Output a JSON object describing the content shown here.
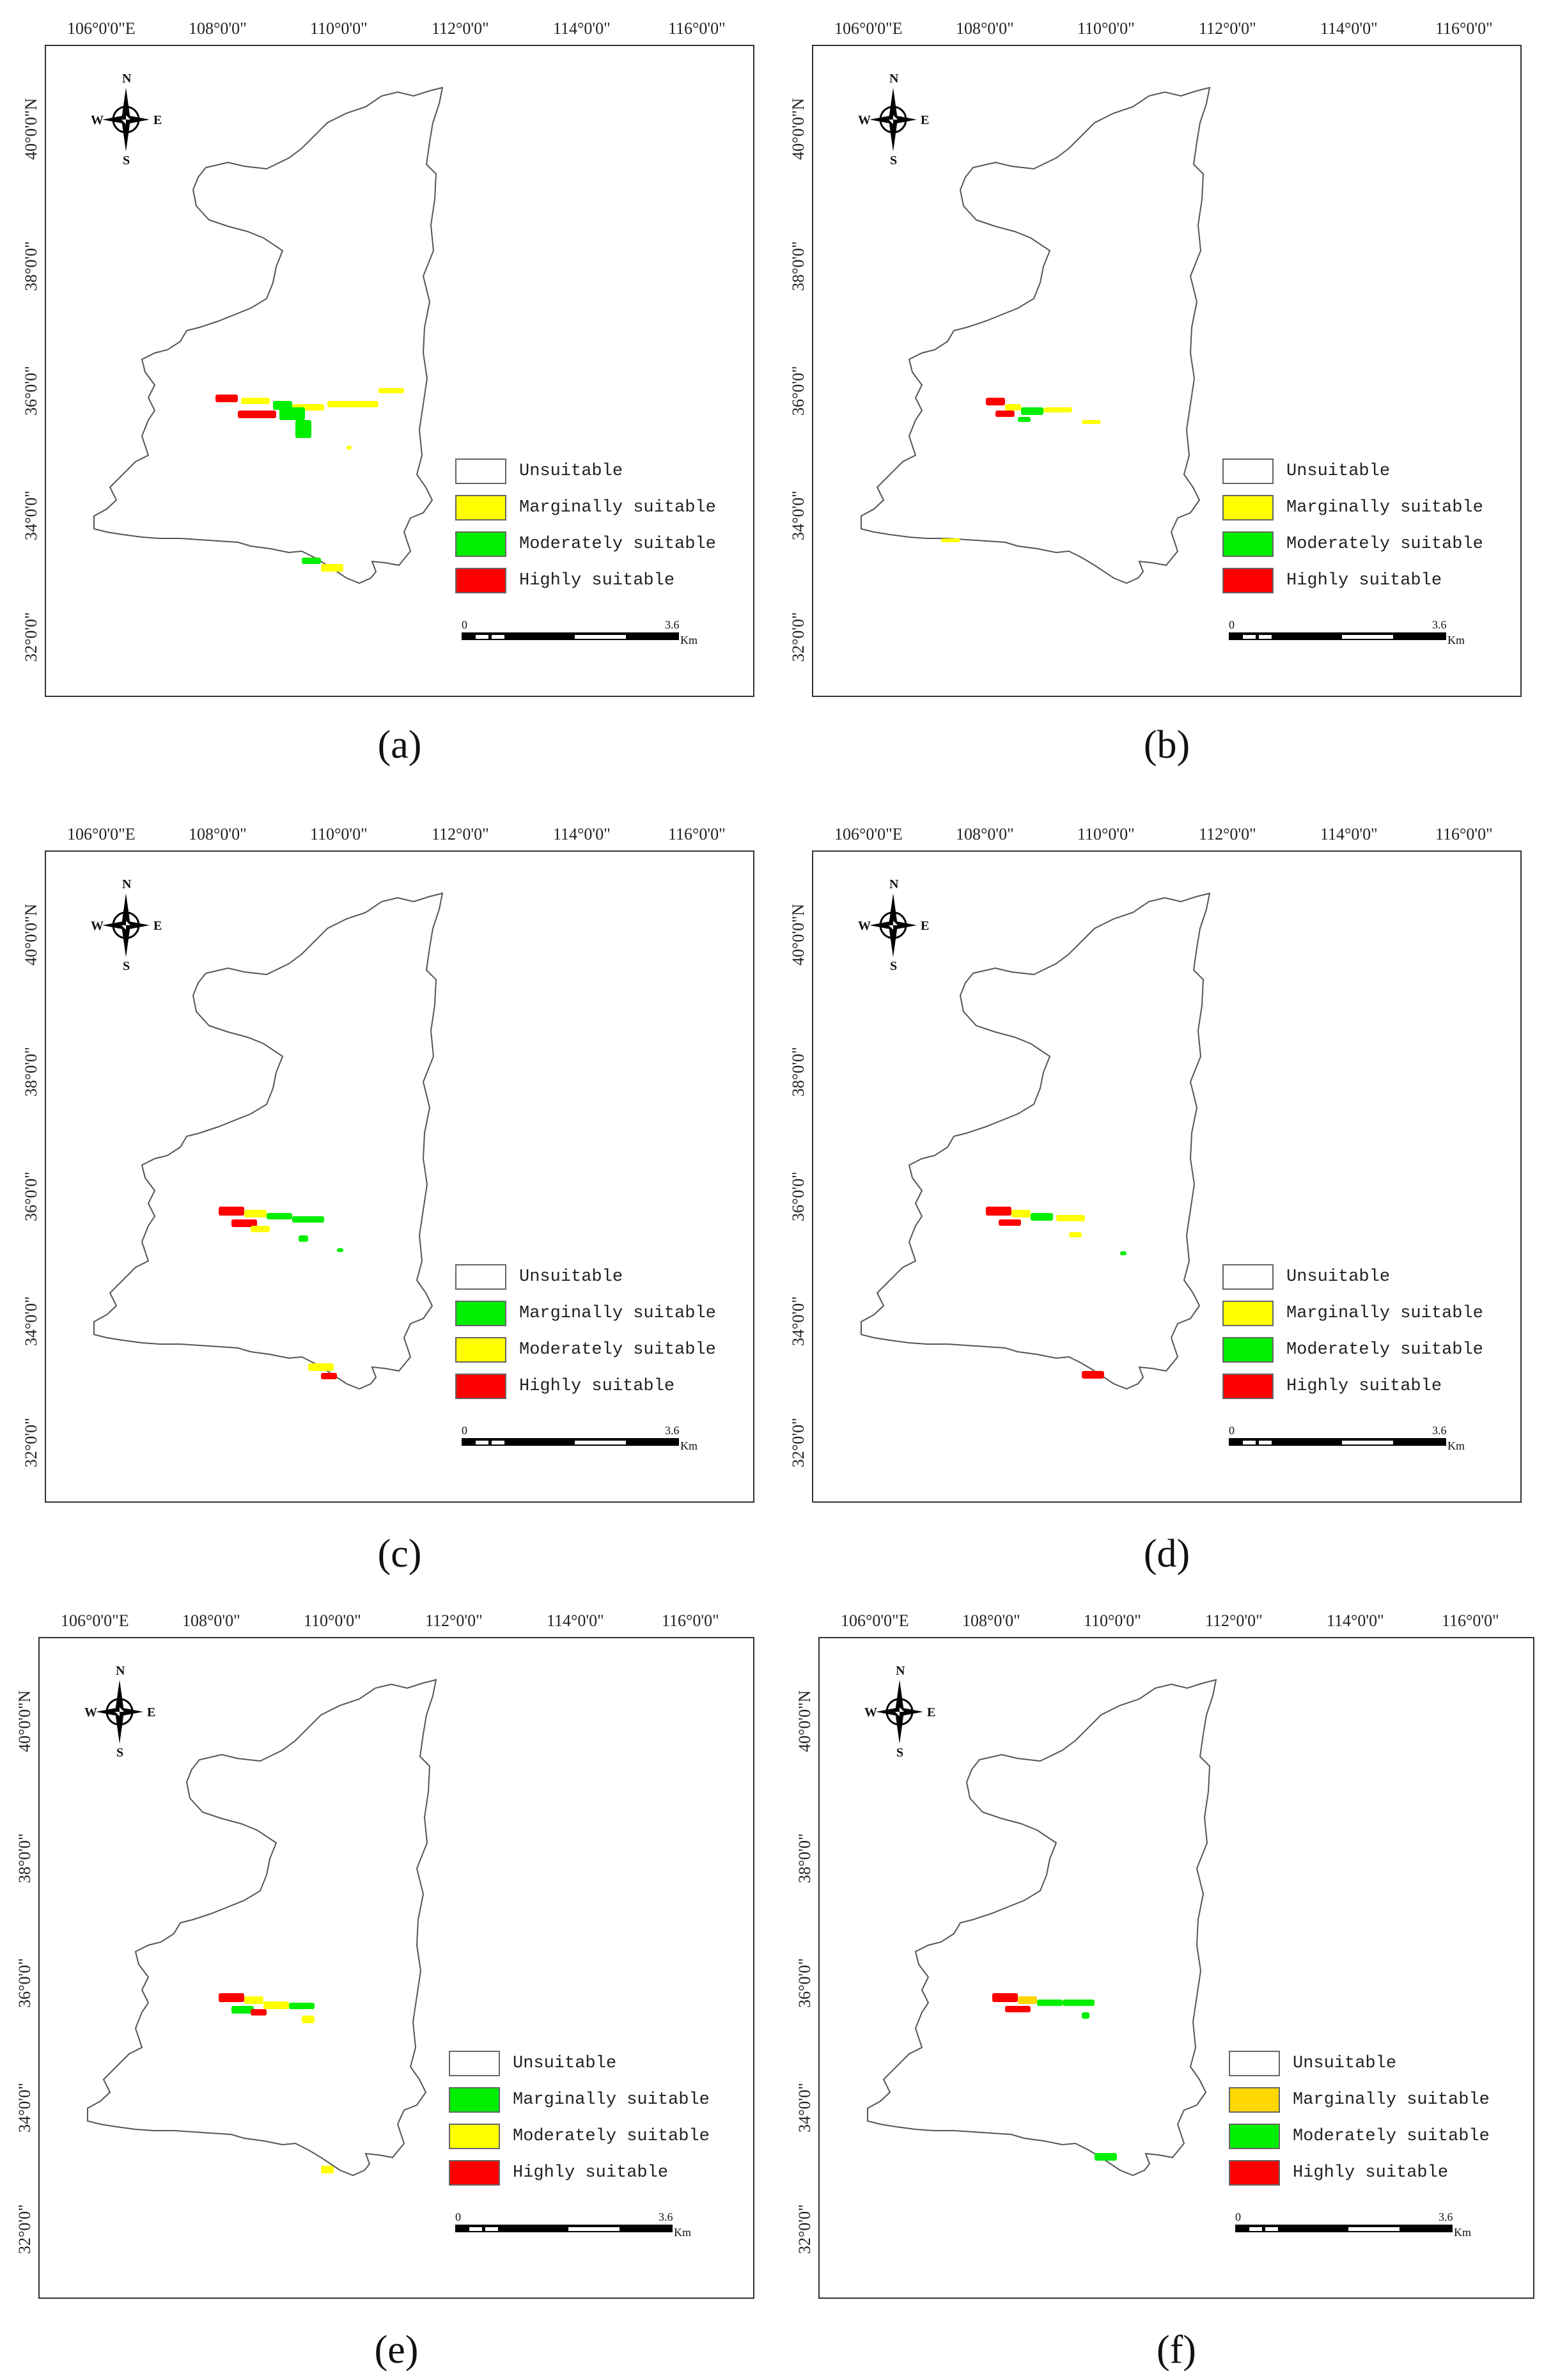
{
  "lon_labels": [
    "106°0'0\"E",
    "108°0'0\"",
    "110°0'0\"",
    "112°0'0\"",
    "114°0'0\"",
    "116°0'0\""
  ],
  "lat_labels": [
    "40°0'0\"N",
    "38°0'0\"",
    "36°0'0\"",
    "34°0'0\"",
    "32°0'0\""
  ],
  "compass": {
    "n": "N",
    "s": "S",
    "e": "E",
    "w": "W"
  },
  "scale": {
    "start": "0",
    "end": "3.6",
    "unit": "Km"
  },
  "colors": {
    "unsuitable": "#ffffff",
    "yellow": "#ffff00",
    "green": "#00ee00",
    "red": "#ff0000",
    "yellow_f": "#ffd700"
  },
  "panels": [
    {
      "caption": "(a)",
      "legend": [
        {
          "label": "Unsuitable",
          "color": "#ffffff"
        },
        {
          "label": "Marginally suitable",
          "color": "#ffff00"
        },
        {
          "label": "Moderately suitable",
          "color": "#00ee00"
        },
        {
          "label": "Highly suitable",
          "color": "#ff0000"
        }
      ]
    },
    {
      "caption": "(b)",
      "legend": [
        {
          "label": "Unsuitable",
          "color": "#ffffff"
        },
        {
          "label": "Marginally suitable",
          "color": "#ffff00"
        },
        {
          "label": "Moderately suitable",
          "color": "#00ee00"
        },
        {
          "label": "Highly suitable",
          "color": "#ff0000"
        }
      ]
    },
    {
      "caption": "(c)",
      "legend": [
        {
          "label": "Unsuitable",
          "color": "#ffffff"
        },
        {
          "label": "Marginally suitable",
          "color": "#00ee00"
        },
        {
          "label": "Moderately suitable",
          "color": "#ffff00"
        },
        {
          "label": "Highly suitable",
          "color": "#ff0000"
        }
      ]
    },
    {
      "caption": "(d)",
      "legend": [
        {
          "label": "Unsuitable",
          "color": "#ffffff"
        },
        {
          "label": "Marginally suitable",
          "color": "#ffff00"
        },
        {
          "label": "Moderately suitable",
          "color": "#00ee00"
        },
        {
          "label": "Highly suitable",
          "color": "#ff0000"
        }
      ]
    },
    {
      "caption": "(e)",
      "legend": [
        {
          "label": "Unsuitable",
          "color": "#ffffff"
        },
        {
          "label": "Marginally suitable",
          "color": "#00ee00"
        },
        {
          "label": "Moderately suitable",
          "color": "#ffff00"
        },
        {
          "label": "Highly suitable",
          "color": "#ff0000"
        }
      ]
    },
    {
      "caption": "(f)",
      "legend": [
        {
          "label": "Unsuitable",
          "color": "#ffffff"
        },
        {
          "label": "Marginally suitable",
          "color": "#ffd700"
        },
        {
          "label": "Moderately suitable",
          "color": "#00ee00"
        },
        {
          "label": "Highly suitable",
          "color": "#ff0000"
        }
      ]
    }
  ]
}
